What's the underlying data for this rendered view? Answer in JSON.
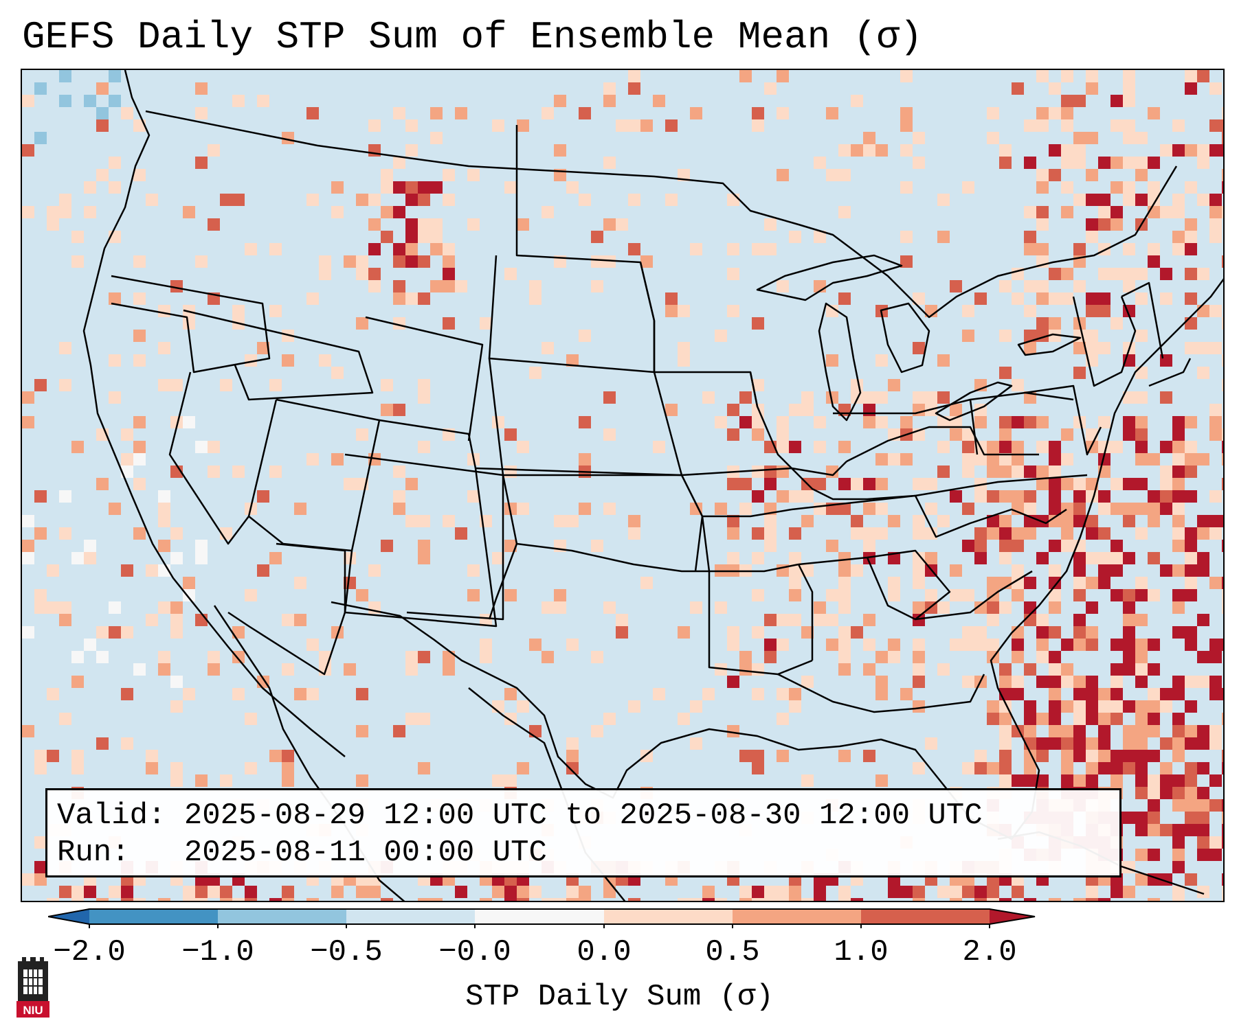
{
  "title": "GEFS Daily STP Sum of Ensemble Mean (σ)",
  "info": {
    "valid_line": "Valid: 2025-08-29 12:00 UTC to 2025-08-30 12:00 UTC",
    "run_line": "Run:   2025-08-11 00:00 UTC"
  },
  "colorbar": {
    "label": "STP Daily Sum (σ)",
    "ticks": [
      "−2.0",
      "−1.0",
      "−0.5",
      "−0.0",
      "0.0",
      "0.5",
      "1.0",
      "2.0"
    ],
    "colors": [
      "#2166ac",
      "#4393c3",
      "#92c5de",
      "#d1e5f0",
      "#f7f7f7",
      "#fddbc7",
      "#f4a582",
      "#d6604d",
      "#b2182b"
    ]
  },
  "map": {
    "ocean_color": "#d1e5f0",
    "border_color": "#000000"
  },
  "logo": {
    "text": "NIU",
    "color": "#c8102e"
  }
}
